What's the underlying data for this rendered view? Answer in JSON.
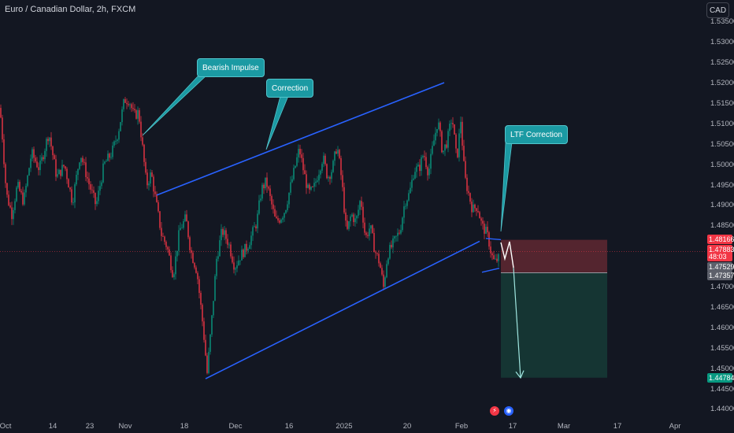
{
  "header": {
    "title": "Euro / Canadian Dollar, 2h, FXCM",
    "currency_button": "CAD"
  },
  "chart_data": {
    "type": "candlestick",
    "symbol": "EURCAD",
    "timeframe": "2h",
    "source": "FXCM",
    "y_axis": {
      "ticks": [
        "1.53500",
        "1.53000",
        "1.52500",
        "1.52000",
        "1.51500",
        "1.51000",
        "1.50500",
        "1.50000",
        "1.49500",
        "1.49000",
        "1.48500",
        "1.47000",
        "1.46500",
        "1.46000",
        "1.45500",
        "1.45000",
        "1.44500",
        "1.44000"
      ],
      "ylim": [
        1.4395,
        1.5375
      ]
    },
    "x_axis": {
      "ticks": [
        "Oct",
        "14",
        "23",
        "Nov",
        "18",
        "Dec",
        "16",
        "2025",
        "20",
        "Feb",
        "17",
        "Mar",
        "17",
        "Apr"
      ]
    },
    "price_path": [
      [
        0,
        1.514
      ],
      [
        3,
        1.507
      ],
      [
        8,
        1.493
      ],
      [
        15,
        1.488
      ],
      [
        22,
        1.495
      ],
      [
        30,
        1.491
      ],
      [
        40,
        1.503
      ],
      [
        50,
        1.499
      ],
      [
        62,
        1.508
      ],
      [
        72,
        1.497
      ],
      [
        82,
        1.5
      ],
      [
        92,
        1.491
      ],
      [
        102,
        1.503
      ],
      [
        112,
        1.496
      ],
      [
        122,
        1.49
      ],
      [
        132,
        1.5
      ],
      [
        142,
        1.503
      ],
      [
        150,
        1.508
      ],
      [
        158,
        1.516
      ],
      [
        164,
        1.516
      ],
      [
        170,
        1.512
      ],
      [
        176,
        1.513
      ],
      [
        180,
        1.506
      ],
      [
        186,
        1.495
      ],
      [
        192,
        1.498
      ],
      [
        198,
        1.491
      ],
      [
        205,
        1.483
      ],
      [
        212,
        1.48
      ],
      [
        220,
        1.473
      ],
      [
        228,
        1.484
      ],
      [
        236,
        1.487
      ],
      [
        242,
        1.479
      ],
      [
        250,
        1.474
      ],
      [
        258,
        1.46
      ],
      [
        263,
        1.449
      ],
      [
        268,
        1.46
      ],
      [
        275,
        1.477
      ],
      [
        282,
        1.484
      ],
      [
        290,
        1.481
      ],
      [
        298,
        1.475
      ],
      [
        306,
        1.478
      ],
      [
        314,
        1.48
      ],
      [
        320,
        1.483
      ],
      [
        326,
        1.486
      ],
      [
        332,
        1.494
      ],
      [
        338,
        1.496
      ],
      [
        344,
        1.491
      ],
      [
        350,
        1.486
      ],
      [
        356,
        1.487
      ],
      [
        362,
        1.489
      ],
      [
        368,
        1.494
      ],
      [
        374,
        1.499
      ],
      [
        380,
        1.504
      ],
      [
        386,
        1.498
      ],
      [
        392,
        1.493
      ],
      [
        398,
        1.494
      ],
      [
        404,
        1.498
      ],
      [
        410,
        1.502
      ],
      [
        416,
        1.497
      ],
      [
        422,
        1.499
      ],
      [
        428,
        1.505
      ],
      [
        434,
        1.496
      ],
      [
        440,
        1.483
      ],
      [
        446,
        1.488
      ],
      [
        452,
        1.486
      ],
      [
        458,
        1.492
      ],
      [
        464,
        1.482
      ],
      [
        470,
        1.485
      ],
      [
        476,
        1.479
      ],
      [
        482,
        1.476
      ],
      [
        487,
        1.47
      ],
      [
        492,
        1.478
      ],
      [
        500,
        1.481
      ],
      [
        508,
        1.484
      ],
      [
        514,
        1.491
      ],
      [
        520,
        1.493
      ],
      [
        526,
        1.499
      ],
      [
        532,
        1.499
      ],
      [
        538,
        1.503
      ],
      [
        544,
        1.498
      ],
      [
        550,
        1.505
      ],
      [
        556,
        1.511
      ],
      [
        562,
        1.503
      ],
      [
        568,
        1.506
      ],
      [
        574,
        1.512
      ],
      [
        580,
        1.501
      ],
      [
        585,
        1.511
      ],
      [
        590,
        1.497
      ],
      [
        595,
        1.493
      ],
      [
        600,
        1.489
      ],
      [
        606,
        1.49
      ],
      [
        612,
        1.485
      ],
      [
        616,
        1.484
      ],
      [
        620,
        1.482
      ],
      [
        624,
        1.478
      ],
      [
        628,
        1.476
      ],
      [
        632,
        1.477
      ],
      [
        634,
        1.477
      ]
    ],
    "annotations": [
      {
        "type": "callout",
        "text": "Bearish Impulse"
      },
      {
        "type": "callout",
        "text": "Correction"
      },
      {
        "type": "callout",
        "text": "LTF Correction"
      }
    ],
    "channel": {
      "upper": [
        [
          1.4926,
          1.5202
        ]
      ],
      "lower": [
        [
          1.4476,
          1.4813
        ]
      ]
    },
    "position": {
      "type": "short",
      "stop": 1.48166,
      "entry": 1.47357,
      "target": 1.44784
    },
    "price_labels": [
      {
        "value": "1.48166",
        "color": "#f23645"
      },
      {
        "value": "1.47883",
        "color": "#f23645"
      },
      {
        "value": "48:03",
        "color": "#f23645"
      },
      {
        "value": "1.47529",
        "color": "#5d606b"
      },
      {
        "value": "1.47357",
        "color": "#5d606b"
      },
      {
        "value": "1.44784",
        "color": "#089981"
      }
    ],
    "colors": {
      "up": "#089981",
      "down": "#f23645",
      "channel": "#2962ff",
      "callout": "#1b9aa3",
      "stop_zone": "#6b2b34",
      "target_zone": "#163b36"
    }
  },
  "footer": {
    "event_icons": [
      "flash-icon",
      "economic-event-icon"
    ]
  }
}
